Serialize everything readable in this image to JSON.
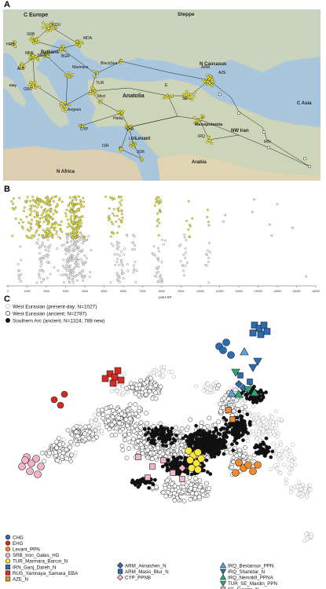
{
  "panels": {
    "a": {
      "letter": "A"
    },
    "b": {
      "letter": "B"
    },
    "c": {
      "letter": "C"
    }
  },
  "map": {
    "region_labels": [
      "C Europe",
      "Steppe",
      "N Caucasus",
      "C Asia",
      "NW Iran",
      "Arabia",
      "N Africa",
      "Levant",
      "Anatolia",
      "Mesopotamia",
      "Balkans",
      "Italy"
    ],
    "site_labels": [
      "ROU",
      "SRB",
      "HRV",
      "MNE",
      "MKD",
      "MDA",
      "BGR",
      "ALB",
      "GRC",
      "Marmara",
      "BlackSea",
      "TUR",
      "Aegean",
      "Med",
      "CYP",
      "Hatay",
      "SYR",
      "LBN",
      "ISR",
      "JOR",
      "ARM",
      "AZE",
      "E",
      "SE",
      "IRQ",
      "IRN"
    ],
    "colors": {
      "sea": "#a9c6dc",
      "land": "#c9d3bd",
      "sample": "#f4ef2e"
    }
  },
  "timeline": {
    "xlabel": "years BP",
    "ticks": [
      0,
      1000,
      2000,
      3000,
      4000,
      5000,
      6000,
      7000,
      8000,
      9000,
      10000,
      11000,
      12000,
      13000,
      14000,
      15000,
      16000
    ],
    "colors": {
      "southern_arc": "#f2ed3a",
      "west_eurasian": "#ffffff"
    }
  },
  "pca": {
    "legend_top": [
      {
        "label": "West Eurasian (present-day; N=1027)",
        "fill": "#ffffff",
        "stroke": "#b5b5b5"
      },
      {
        "label": "West Eurasian (ancient; N=2787)",
        "fill": "#ffffff",
        "stroke": "#333333"
      },
      {
        "label": "Southern Arc (ancient; N=1324; 788 new)",
        "fill": "#111111",
        "stroke": "#111111"
      }
    ],
    "legend_groups": [
      {
        "label": "CHG",
        "shape": "circle",
        "color": "#2a6db5"
      },
      {
        "label": "EHG",
        "shape": "circle",
        "color": "#d42b22"
      },
      {
        "label": "Levant_PPN",
        "shape": "circle",
        "color": "#f08a2b"
      },
      {
        "label": "SRB_Iron_Gates_HG",
        "shape": "circle",
        "color": "#f3b3cc"
      },
      {
        "label": "TUR_Marmara_Barcın_N",
        "shape": "circle",
        "color": "#f8e73c"
      },
      {
        "label": "IRN_Ganj_Dareh_N",
        "shape": "square",
        "color": "#2a6db5"
      },
      {
        "label": "RUS_Yamnaya_Samara_EBA",
        "shape": "square",
        "color": "#d42b22"
      },
      {
        "label": "AZE_N",
        "shape": "square",
        "color": "#f08a2b"
      },
      {
        "label": "ARM_Aknashen_N",
        "shape": "diamond",
        "color": "#2a6db5"
      },
      {
        "label": "ARM_Masis_Blur_N",
        "shape": "square",
        "color": "#2a6db5"
      },
      {
        "label": "CYP_PPNB",
        "shape": "diamond",
        "color": "#f3b3cc"
      },
      {
        "label": "IRQ_Bestansur_PPN",
        "shape": "triangle-up",
        "color": "#5ea3de"
      },
      {
        "label": "IRQ_Shanidar_N",
        "shape": "triangle-down",
        "color": "#2a6db5"
      },
      {
        "label": "IRQ_Nemrik9_PPNA",
        "shape": "triangle-up",
        "color": "#2ba67a"
      },
      {
        "label": "TUR_SE_Mardin_PPN",
        "shape": "triangle-down",
        "color": "#2ba67a"
      },
      {
        "label": "SE_Europe_N",
        "shape": "square",
        "color": "#f3b3cc"
      }
    ]
  }
}
